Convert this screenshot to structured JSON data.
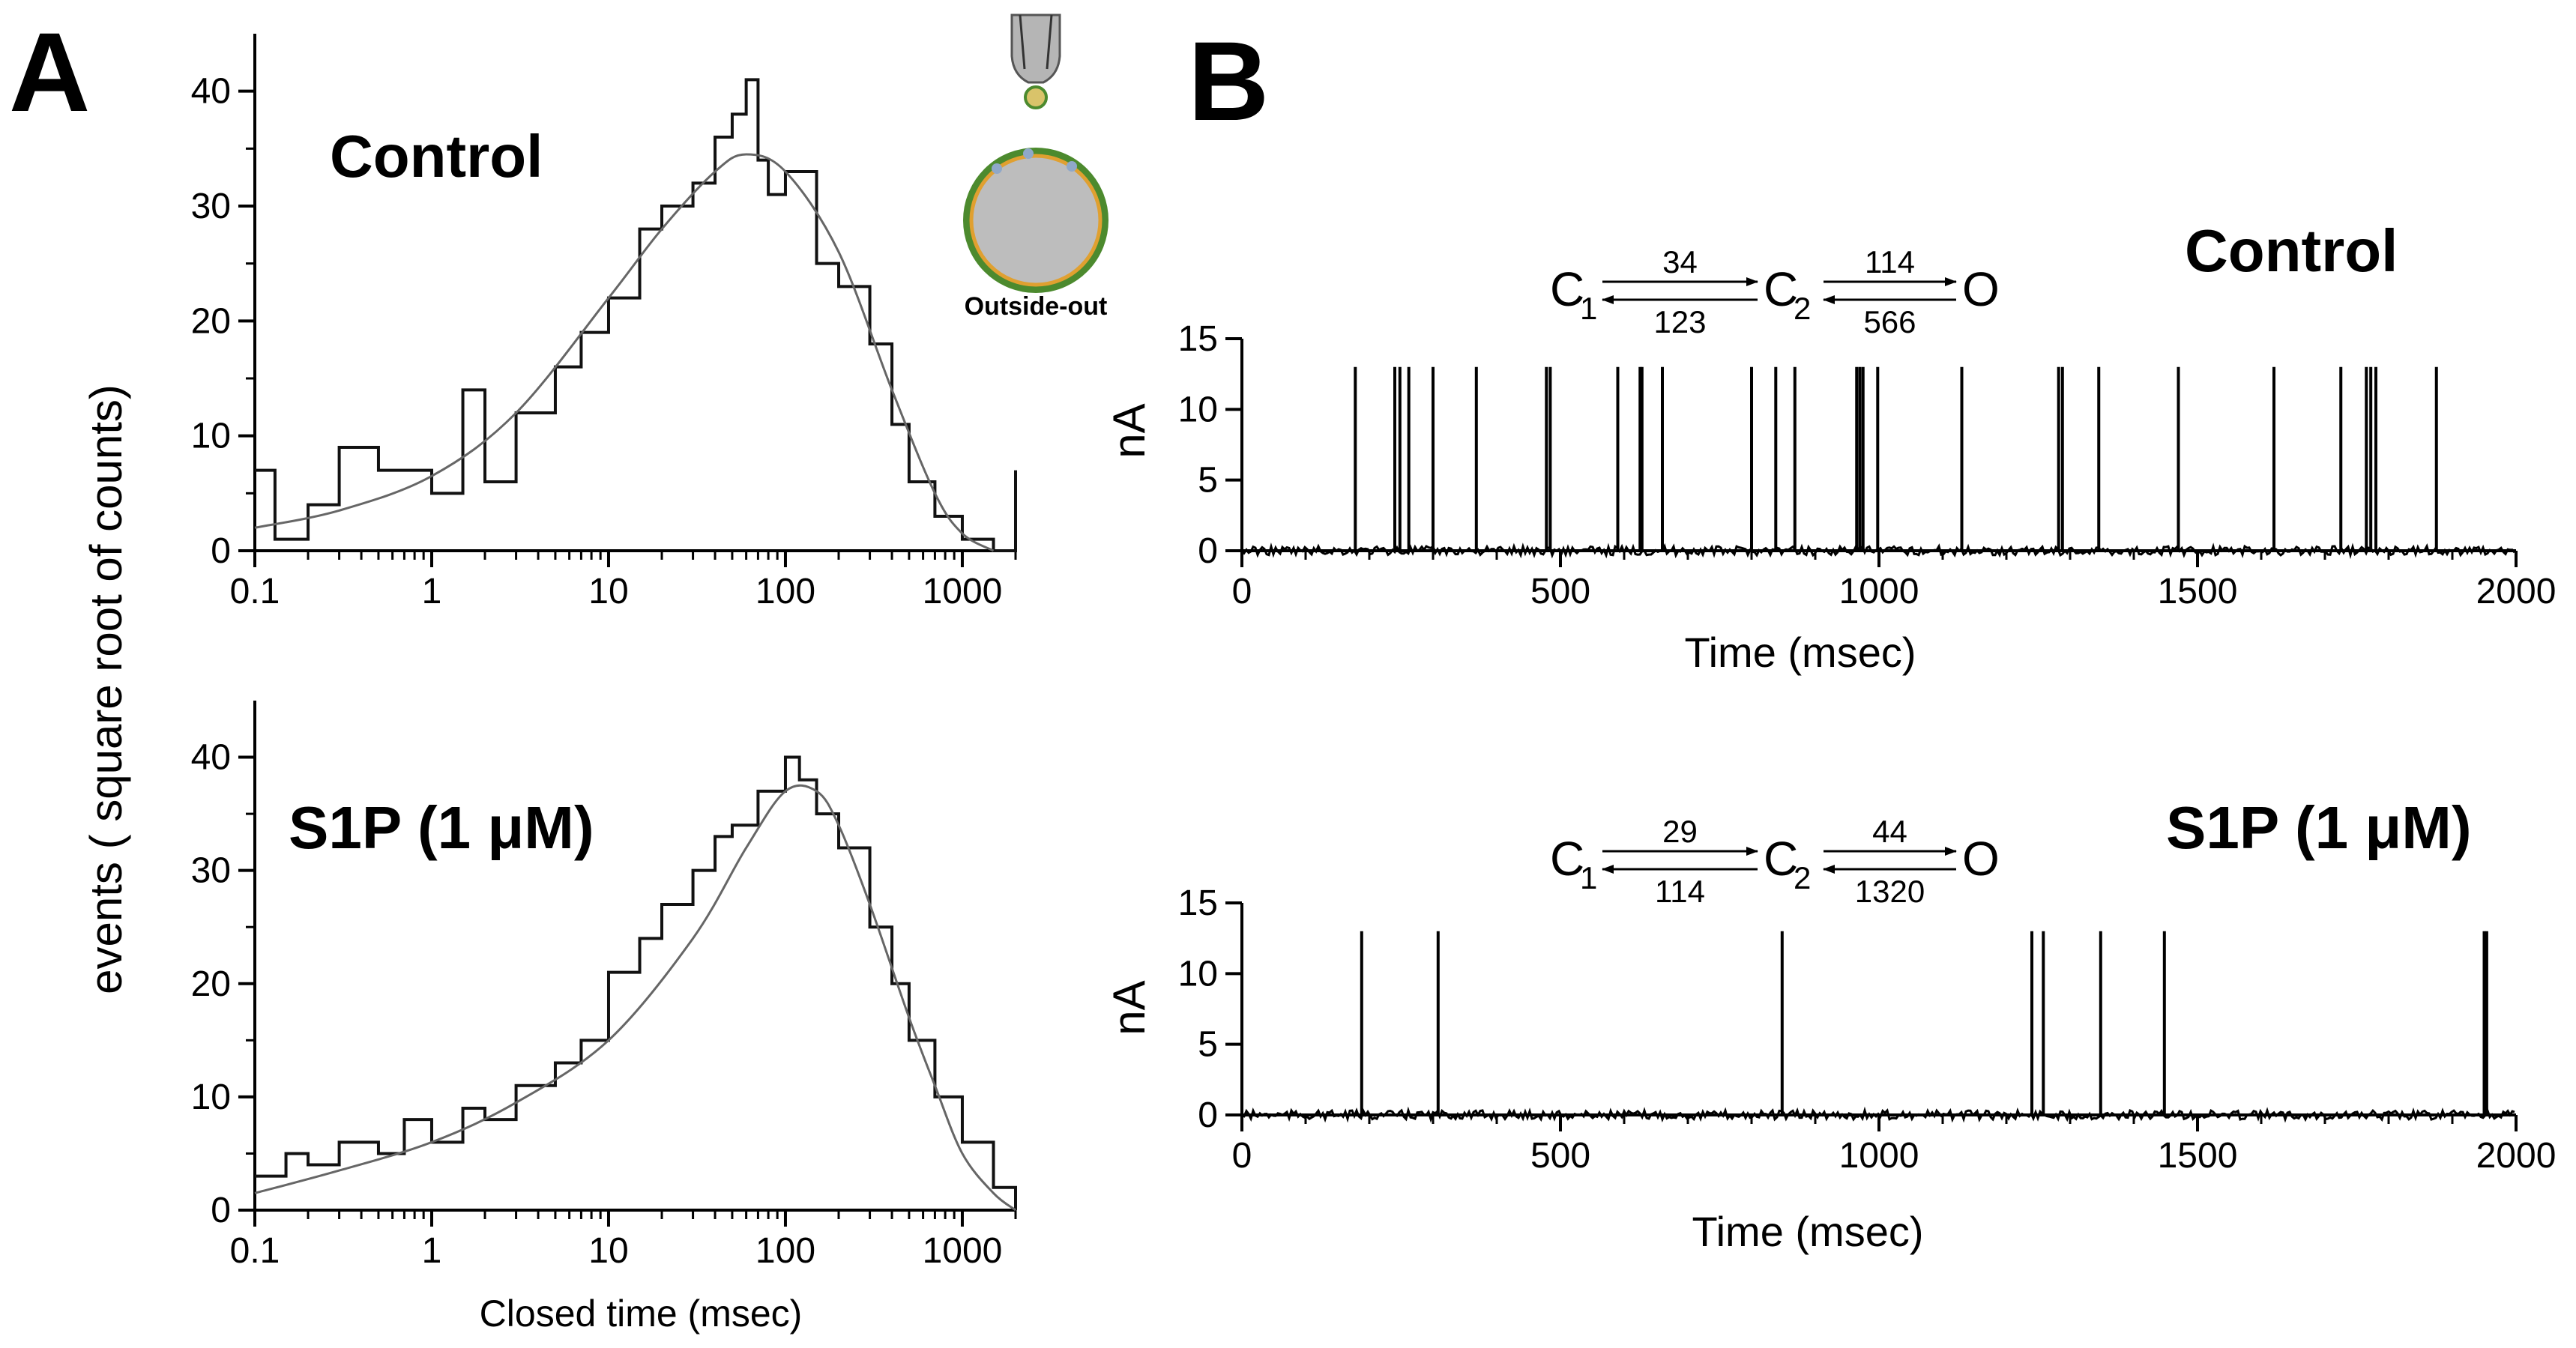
{
  "panels": {
    "a": "A",
    "b": "B"
  },
  "panel_a": {
    "ylabel": "events  ( square root of counts)",
    "xlabel": "Closed time (msec)",
    "inset_label": "Outside-out"
  },
  "panel_b": {
    "ylabel": "nA",
    "xlabel": "Time (msec)"
  },
  "chart_data": [
    {
      "type": "line",
      "panel": "A-top",
      "title": "Control",
      "xscale": "log",
      "xlim": [
        0.1,
        2000
      ],
      "ylim": [
        0,
        45
      ],
      "xticks": [
        0.1,
        1,
        10,
        100,
        1000
      ],
      "xtick_labels": [
        "0.1",
        "1",
        "10",
        "100",
        "1000"
      ],
      "yticks": [
        0,
        10,
        20,
        30,
        40
      ],
      "ytick_labels": [
        "0",
        "10",
        "20",
        "30",
        "40"
      ],
      "series": [
        {
          "name": "histogram",
          "style": "step",
          "x": [
            0.1,
            0.13,
            0.2,
            0.3,
            0.5,
            1,
            1.5,
            2,
            3,
            5,
            7,
            10,
            15,
            20,
            30,
            40,
            50,
            60,
            70,
            80,
            100,
            150,
            200,
            300,
            400,
            500,
            700,
            1000,
            1500,
            2000
          ],
          "y": [
            7,
            1,
            4,
            9,
            7,
            5,
            14,
            6,
            12,
            16,
            19,
            22,
            28,
            30,
            32,
            36,
            38,
            41,
            34,
            31,
            33,
            25,
            23,
            18,
            11,
            6,
            3,
            1,
            0,
            7
          ]
        },
        {
          "name": "fit",
          "style": "smooth",
          "x": [
            0.1,
            0.3,
            1,
            3,
            10,
            20,
            40,
            60,
            100,
            200,
            400,
            700,
            1000,
            1500
          ],
          "y": [
            2,
            3.5,
            6.5,
            12,
            22,
            28,
            33,
            34.5,
            33,
            26,
            14,
            5,
            1.5,
            0
          ]
        }
      ]
    },
    {
      "type": "line",
      "panel": "A-bottom",
      "title": "S1P (1 μM)",
      "xscale": "log",
      "xlim": [
        0.1,
        2000
      ],
      "ylim": [
        0,
        45
      ],
      "xticks": [
        0.1,
        1,
        10,
        100,
        1000
      ],
      "xtick_labels": [
        "0.1",
        "1",
        "10",
        "100",
        "1000"
      ],
      "yticks": [
        0,
        10,
        20,
        30,
        40
      ],
      "ytick_labels": [
        "0",
        "10",
        "20",
        "30",
        "40"
      ],
      "series": [
        {
          "name": "histogram",
          "style": "step",
          "x": [
            0.1,
            0.15,
            0.2,
            0.3,
            0.5,
            0.7,
            1,
            1.5,
            2,
            3,
            5,
            7,
            10,
            15,
            20,
            30,
            40,
            50,
            70,
            100,
            120,
            150,
            200,
            300,
            400,
            500,
            700,
            1000,
            1500,
            2000
          ],
          "y": [
            3,
            5,
            4,
            6,
            5,
            8,
            6,
            9,
            8,
            11,
            13,
            15,
            21,
            24,
            27,
            30,
            33,
            34,
            37,
            40,
            38,
            35,
            32,
            25,
            20,
            15,
            10,
            6,
            2,
            0
          ]
        },
        {
          "name": "fit",
          "style": "smooth",
          "x": [
            0.1,
            0.3,
            1,
            3,
            10,
            30,
            60,
            100,
            150,
            200,
            300,
            500,
            700,
            1000,
            1500,
            2000
          ],
          "y": [
            1.5,
            3.5,
            6,
            9.5,
            15,
            24,
            32,
            37,
            37,
            34,
            27,
            17,
            11,
            5,
            1.5,
            0
          ]
        }
      ]
    },
    {
      "type": "line",
      "panel": "B-top",
      "title": "Control",
      "xlim": [
        0,
        2000
      ],
      "ylim": [
        0,
        15
      ],
      "xticks": [
        0,
        500,
        1000,
        1500,
        2000
      ],
      "xtick_labels": [
        "0",
        "500",
        "1000",
        "1500",
        "2000"
      ],
      "yticks": [
        0,
        5,
        10,
        15
      ],
      "ytick_labels": [
        "0",
        "5",
        "10",
        "15"
      ],
      "baseline": 0,
      "event_amplitude": 13,
      "event_times": [
        178,
        240,
        248,
        262,
        300,
        368,
        478,
        484,
        590,
        625,
        628,
        660,
        800,
        838,
        868,
        965,
        970,
        975,
        998,
        1130,
        1282,
        1288,
        1345,
        1470,
        1620,
        1725,
        1765,
        1772,
        1780,
        1875
      ],
      "scheme": {
        "states": [
          "C",
          "C",
          "O"
        ],
        "subscripts": [
          "1",
          "2",
          ""
        ],
        "fwd_rates": [
          "34",
          "114"
        ],
        "bwd_rates": [
          "123",
          "566"
        ]
      }
    },
    {
      "type": "line",
      "panel": "B-bottom",
      "title": "S1P (1 μM)",
      "xlim": [
        0,
        2000
      ],
      "ylim": [
        0,
        15
      ],
      "xticks": [
        0,
        500,
        1000,
        1500,
        2000
      ],
      "xtick_labels": [
        "0",
        "500",
        "1000",
        "1500",
        "2000"
      ],
      "yticks": [
        0,
        5,
        10,
        15
      ],
      "ytick_labels": [
        "0",
        "5",
        "10",
        "15"
      ],
      "baseline": 0,
      "event_amplitude": 13,
      "event_times": [
        188,
        308,
        848,
        1240,
        1258,
        1348,
        1448,
        1950,
        1954
      ],
      "scheme": {
        "states": [
          "C",
          "C",
          "O"
        ],
        "subscripts": [
          "1",
          "2",
          ""
        ],
        "fwd_rates": [
          "29",
          "44"
        ],
        "bwd_rates": [
          "114",
          "1320"
        ]
      }
    }
  ]
}
